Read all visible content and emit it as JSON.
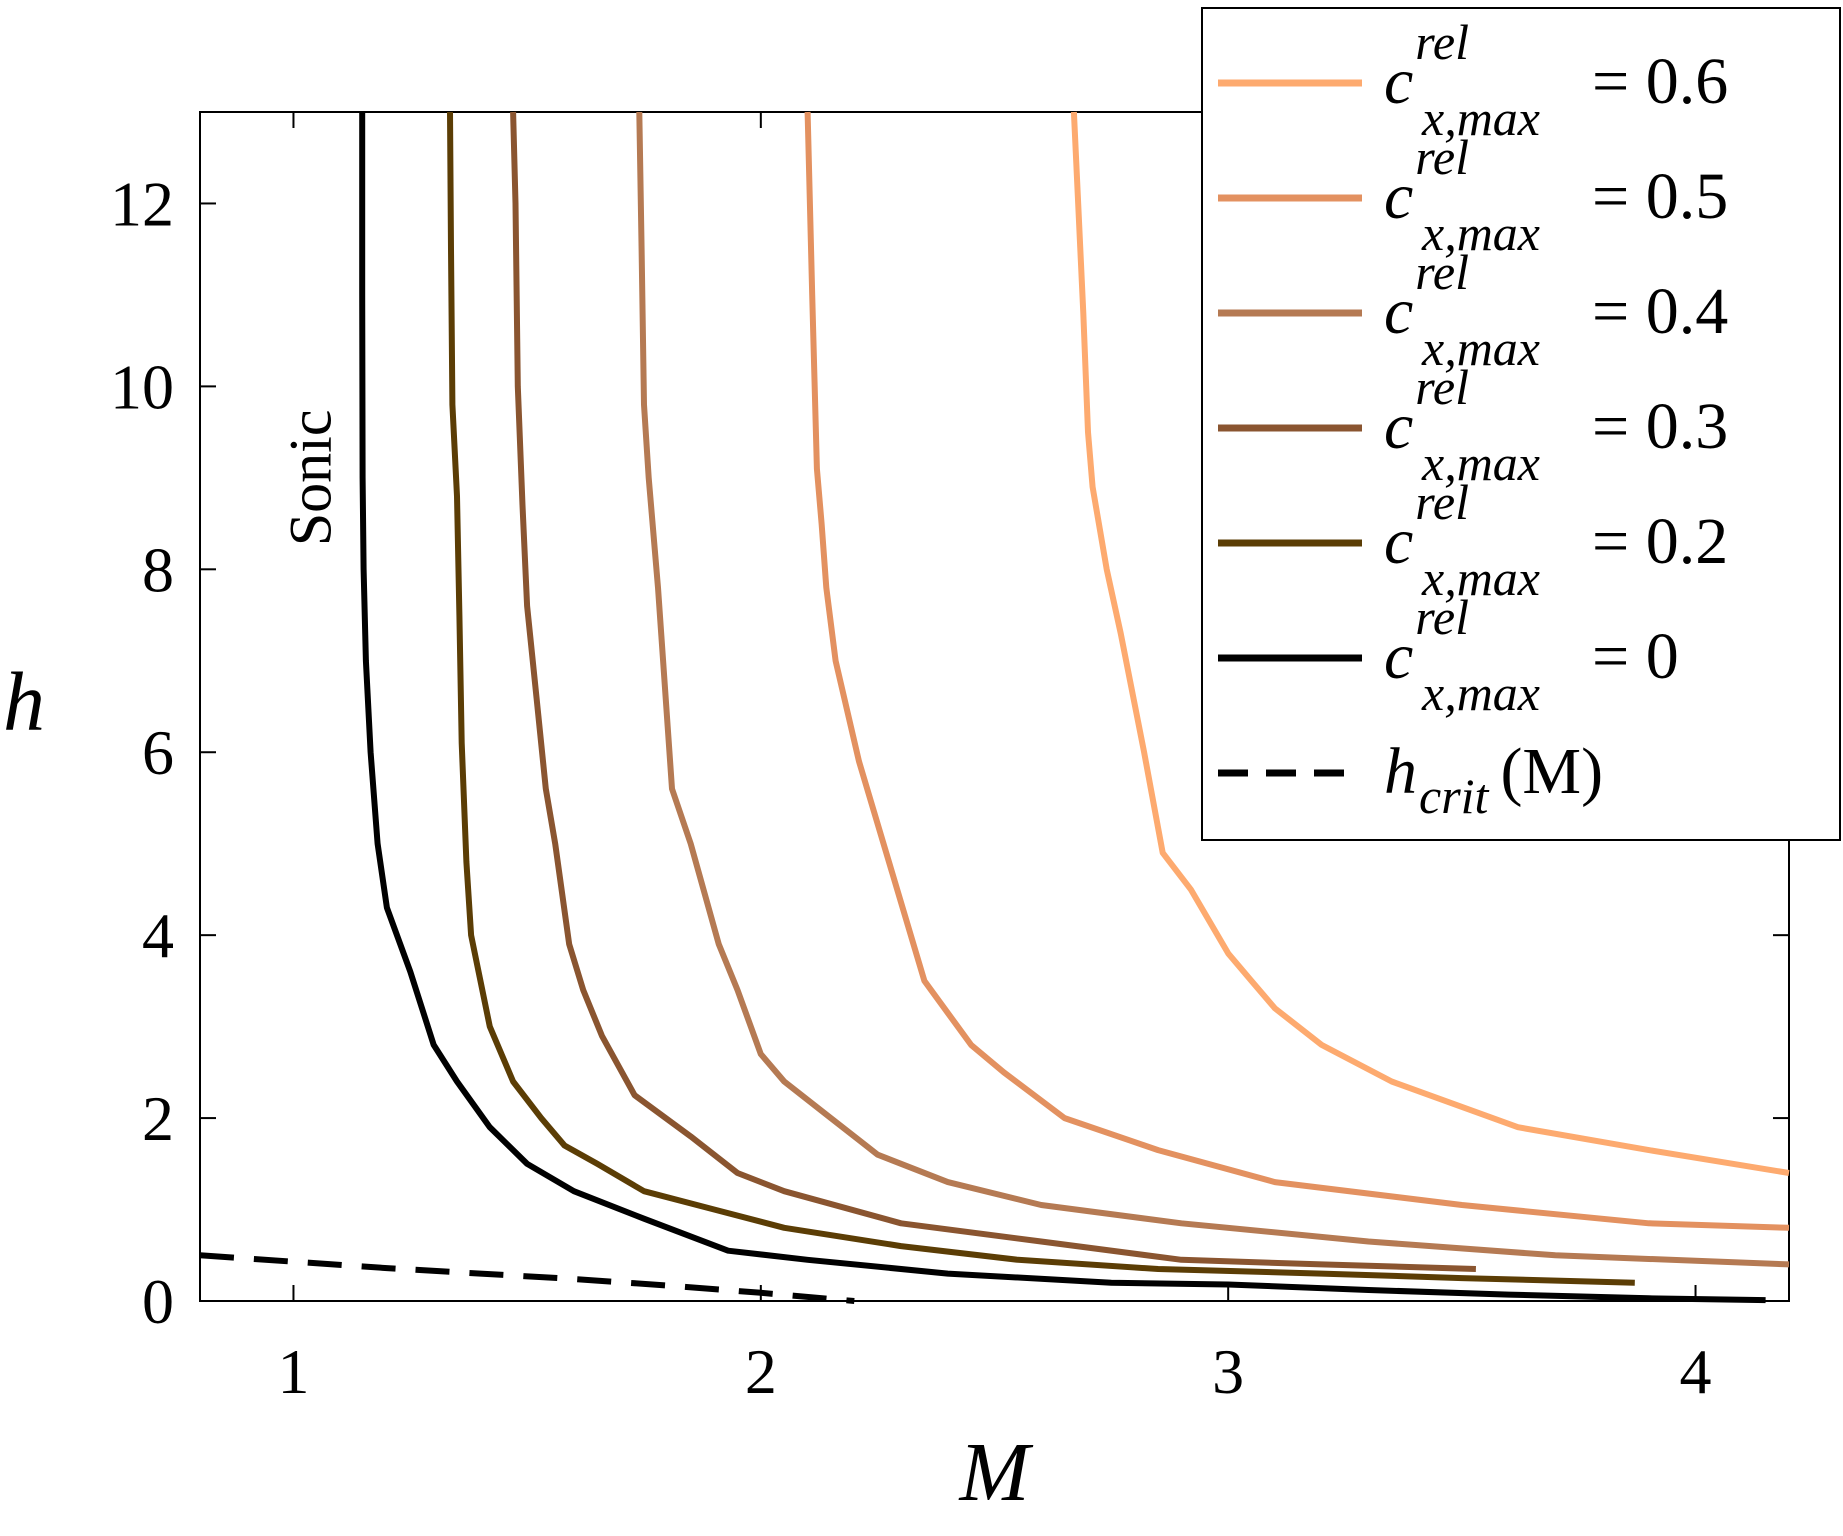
{
  "chart_data": {
    "type": "line",
    "xlabel": "M",
    "ylabel": "h",
    "xlim": [
      0.8,
      4.2
    ],
    "ylim": [
      0,
      13
    ],
    "xticks": [
      1,
      2,
      3,
      4
    ],
    "yticks": [
      0,
      2,
      4,
      6,
      8,
      10,
      12
    ],
    "grid": false,
    "legend_position": "top-right",
    "annotations": [
      {
        "text": "Sonic",
        "x": 1.05,
        "y": 9,
        "rotation": -90
      }
    ],
    "series": [
      {
        "name": "c_{x,max}^{rel} = 0.6",
        "legend": {
          "sym": "c",
          "sup": "rel",
          "sub": "x,max",
          "eq": "= 0.6"
        },
        "color": "#FDAA6F",
        "style": "solid",
        "x": [
          2.67,
          2.69,
          2.7,
          2.71,
          2.74,
          2.77,
          2.82,
          2.86,
          2.92,
          3.0,
          3.05,
          3.1,
          3.2,
          3.35,
          3.62,
          3.9,
          4.2
        ],
        "y": [
          13.0,
          10.8,
          9.5,
          8.9,
          8.0,
          7.3,
          6.0,
          4.9,
          4.5,
          3.8,
          3.5,
          3.2,
          2.8,
          2.4,
          1.9,
          1.65,
          1.4
        ]
      },
      {
        "name": "c_{x,max}^{rel} = 0.5",
        "legend": {
          "sym": "c",
          "sup": "rel",
          "sub": "x,max",
          "eq": "= 0.5"
        },
        "color": "#E39160",
        "style": "solid",
        "x": [
          2.1,
          2.11,
          2.12,
          2.13,
          2.14,
          2.16,
          2.21,
          2.28,
          2.35,
          2.45,
          2.52,
          2.65,
          2.85,
          3.1,
          3.5,
          3.9,
          4.2
        ],
        "y": [
          13.0,
          11.0,
          9.1,
          8.5,
          7.8,
          7.0,
          5.9,
          4.7,
          3.5,
          2.8,
          2.5,
          2.0,
          1.65,
          1.3,
          1.05,
          0.85,
          0.8
        ]
      },
      {
        "name": "c_{x,max}^{rel} = 0.4",
        "legend": {
          "sym": "c",
          "sup": "rel",
          "sub": "x,max",
          "eq": "= 0.4"
        },
        "color": "#B57A53",
        "style": "solid",
        "x": [
          1.74,
          1.745,
          1.75,
          1.76,
          1.78,
          1.81,
          1.85,
          1.91,
          1.95,
          2.0,
          2.05,
          2.15,
          2.25,
          2.4,
          2.6,
          2.9,
          3.3,
          3.7,
          4.2
        ],
        "y": [
          13.0,
          11.5,
          9.8,
          9.0,
          7.8,
          5.6,
          5.0,
          3.9,
          3.4,
          2.7,
          2.4,
          2.0,
          1.6,
          1.3,
          1.05,
          0.85,
          0.65,
          0.5,
          0.4
        ]
      },
      {
        "name": "c_{x,max}^{rel} = 0.3",
        "legend": {
          "sym": "c",
          "sup": "rel",
          "sub": "x,max",
          "eq": "= 0.3"
        },
        "color": "#8A5530",
        "style": "solid",
        "x": [
          1.47,
          1.475,
          1.48,
          1.49,
          1.5,
          1.52,
          1.54,
          1.56,
          1.59,
          1.62,
          1.66,
          1.73,
          1.85,
          1.95,
          2.05,
          2.3,
          2.6,
          2.9,
          3.2,
          3.53
        ],
        "y": [
          13.0,
          12.0,
          10.0,
          8.7,
          7.6,
          6.6,
          5.6,
          5.0,
          3.9,
          3.4,
          2.9,
          2.25,
          1.8,
          1.4,
          1.2,
          0.85,
          0.65,
          0.45,
          0.4,
          0.35
        ]
      },
      {
        "name": "c_{x,max}^{rel} = 0.2",
        "legend": {
          "sym": "c",
          "sup": "rel",
          "sub": "x,max",
          "eq": "= 0.2"
        },
        "color": "#5B3D05",
        "style": "solid",
        "x": [
          1.335,
          1.337,
          1.34,
          1.35,
          1.355,
          1.36,
          1.37,
          1.38,
          1.42,
          1.47,
          1.53,
          1.58,
          1.65,
          1.75,
          1.9,
          2.05,
          2.3,
          2.55,
          2.85,
          3.2,
          3.5,
          3.87
        ],
        "y": [
          13.0,
          11.5,
          9.8,
          8.8,
          7.5,
          6.1,
          4.8,
          4.0,
          3.0,
          2.4,
          2.0,
          1.7,
          1.5,
          1.2,
          1.0,
          0.8,
          0.6,
          0.45,
          0.35,
          0.3,
          0.25,
          0.2
        ]
      },
      {
        "name": "c_{x,max}^{rel} = 0",
        "legend": {
          "sym": "c",
          "sup": "rel",
          "sub": "x,max",
          "eq": "= 0"
        },
        "color": "#000000",
        "style": "solid",
        "x": [
          1.147,
          1.147,
          1.148,
          1.15,
          1.155,
          1.165,
          1.18,
          1.2,
          1.25,
          1.3,
          1.35,
          1.42,
          1.5,
          1.6,
          1.75,
          1.93,
          2.1,
          2.4,
          2.75,
          3.0,
          3.3,
          3.6,
          3.9,
          4.15
        ],
        "y": [
          13.0,
          11.0,
          9.0,
          8.0,
          7.0,
          6.0,
          5.0,
          4.3,
          3.6,
          2.8,
          2.4,
          1.9,
          1.5,
          1.2,
          0.9,
          0.55,
          0.45,
          0.3,
          0.2,
          0.18,
          0.12,
          0.07,
          0.03,
          0.01
        ]
      },
      {
        "name": "h_crit (M)",
        "legend": {
          "sym": "h",
          "sub": "crit",
          "eq": "(M)"
        },
        "color": "#000000",
        "style": "dashed",
        "x": [
          0.8,
          1.0,
          1.2,
          1.4,
          1.6,
          1.8,
          2.0,
          2.2
        ],
        "y": [
          0.5,
          0.43,
          0.36,
          0.3,
          0.24,
          0.17,
          0.09,
          0.0
        ]
      }
    ]
  }
}
